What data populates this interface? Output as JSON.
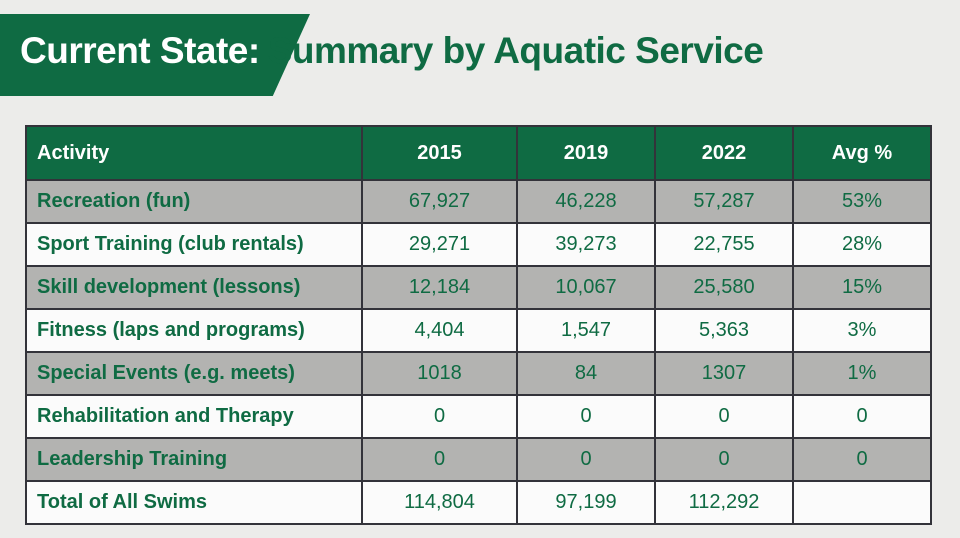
{
  "title": {
    "part1": "Current State:",
    "part2": "Summary by Aquatic Service"
  },
  "table": {
    "headers": [
      "Activity",
      "2015",
      "2019",
      "2022",
      "Avg %"
    ],
    "rows": [
      [
        "Recreation (fun)",
        "67,927",
        "46,228",
        "57,287",
        "53%"
      ],
      [
        "Sport Training (club rentals)",
        "29,271",
        "39,273",
        "22,755",
        "28%"
      ],
      [
        "Skill development (lessons)",
        "12,184",
        "10,067",
        "25,580",
        "15%"
      ],
      [
        "Fitness (laps and programs)",
        "4,404",
        "1,547",
        "5,363",
        "3%"
      ],
      [
        "Special Events (e.g. meets)",
        "1018",
        "84",
        "1307",
        "1%"
      ],
      [
        "Rehabilitation and Therapy",
        "0",
        "0",
        "0",
        "0"
      ],
      [
        "Leadership Training",
        "0",
        "0",
        "0",
        "0"
      ],
      [
        "Total of All Swims",
        "114,804",
        "97,199",
        "112,292",
        ""
      ]
    ]
  },
  "colors": {
    "brand_green": "#0f6b43",
    "row_shade": "#b3b3b1",
    "row_plain": "#fbfbfb"
  }
}
